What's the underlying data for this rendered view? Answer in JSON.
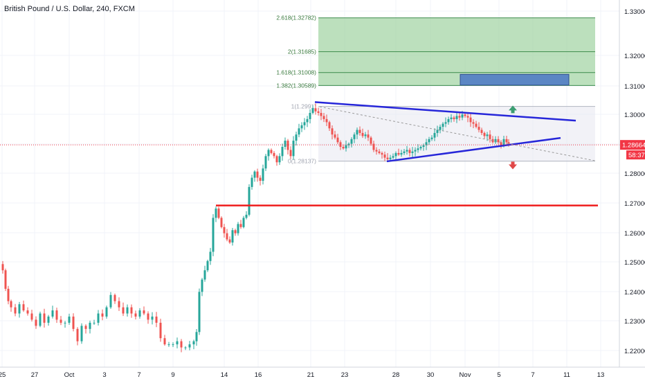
{
  "header": {
    "symbol_title": "British Pound / U.S. Dollar, 240, FXCM"
  },
  "price_scale": {
    "current_price": "1.28664",
    "countdown": "58:37",
    "current_price_color": "#f23645"
  },
  "colors": {
    "bull": "#26a69a",
    "bear": "#ef5350",
    "trendline": "#2626d9",
    "support": "#ee1c1c",
    "fib_zone": "#a5d6a7",
    "fib_box": "#5b86c4",
    "arrow_up": "#3c9e72",
    "arrow_down": "#e04848"
  },
  "chart_data": {
    "type": "candlestick",
    "title": "British Pound / U.S. Dollar, 240, FXCM",
    "x_tick_labels": [
      "25",
      "27",
      "Oct",
      "3",
      "7",
      "9",
      "14",
      "16",
      "21",
      "23",
      "28",
      "30",
      "Nov",
      "5",
      "7",
      "11",
      "13"
    ],
    "y_tick_labels": [
      "1.33000",
      "1.32000",
      "1.31000",
      "1.30000",
      "1.29000",
      "1.28000",
      "1.27000",
      "1.26000",
      "1.25000",
      "1.24000",
      "1.23000",
      "1.22000"
    ],
    "ylim": [
      1.2175,
      1.3345
    ],
    "grid": true,
    "price_path": [
      [
        0,
        1.248
      ],
      [
        4,
        1.246
      ],
      [
        8,
        1.24
      ],
      [
        12,
        1.236
      ],
      [
        16,
        1.234
      ],
      [
        22,
        1.232
      ],
      [
        28,
        1.235
      ],
      [
        34,
        1.233
      ],
      [
        40,
        1.232
      ],
      [
        46,
        1.23
      ],
      [
        52,
        1.228
      ],
      [
        58,
        1.232
      ],
      [
        64,
        1.229
      ],
      [
        70,
        1.231
      ],
      [
        76,
        1.233
      ],
      [
        82,
        1.23
      ],
      [
        88,
        1.229
      ],
      [
        94,
        1.229
      ],
      [
        100,
        1.231
      ],
      [
        106,
        1.227
      ],
      [
        112,
        1.223
      ],
      [
        118,
        1.228
      ],
      [
        124,
        1.227
      ],
      [
        130,
        1.229
      ],
      [
        136,
        1.229
      ],
      [
        142,
        1.232
      ],
      [
        148,
        1.231
      ],
      [
        154,
        1.234
      ],
      [
        160,
        1.238
      ],
      [
        166,
        1.236
      ],
      [
        172,
        1.234
      ],
      [
        178,
        1.232
      ],
      [
        184,
        1.234
      ],
      [
        190,
        1.232
      ],
      [
        196,
        1.231
      ],
      [
        202,
        1.233
      ],
      [
        208,
        1.232
      ],
      [
        214,
        1.23
      ],
      [
        220,
        1.231
      ],
      [
        226,
        1.229
      ],
      [
        232,
        1.224
      ],
      [
        238,
        1.222
      ],
      [
        244,
        1.222
      ],
      [
        250,
        1.222
      ],
      [
        256,
        1.223
      ],
      [
        262,
        1.221
      ],
      [
        268,
        1.221
      ],
      [
        274,
        1.222
      ],
      [
        280,
        1.223
      ],
      [
        284,
        1.226
      ],
      [
        288,
        1.239
      ],
      [
        292,
        1.243
      ],
      [
        296,
        1.246
      ],
      [
        300,
        1.249
      ],
      [
        304,
        1.252
      ],
      [
        308,
        1.263
      ],
      [
        312,
        1.266
      ],
      [
        316,
        1.263
      ],
      [
        320,
        1.26
      ],
      [
        324,
        1.258
      ],
      [
        328,
        1.256
      ],
      [
        332,
        1.255
      ],
      [
        336,
        1.259
      ],
      [
        340,
        1.258
      ],
      [
        344,
        1.261
      ],
      [
        348,
        1.26
      ],
      [
        352,
        1.263
      ],
      [
        356,
        1.264
      ],
      [
        360,
        1.273
      ],
      [
        364,
        1.276
      ],
      [
        368,
        1.278
      ],
      [
        372,
        1.276
      ],
      [
        376,
        1.275
      ],
      [
        380,
        1.279
      ],
      [
        384,
        1.283
      ],
      [
        388,
        1.285
      ],
      [
        392,
        1.284
      ],
      [
        396,
        1.283
      ],
      [
        400,
        1.281
      ],
      [
        404,
        1.283
      ],
      [
        408,
        1.286
      ],
      [
        412,
        1.288
      ],
      [
        416,
        1.285
      ],
      [
        420,
        1.283
      ],
      [
        424,
        1.288
      ],
      [
        428,
        1.29
      ],
      [
        432,
        1.292
      ],
      [
        436,
        1.293
      ],
      [
        440,
        1.294
      ],
      [
        444,
        1.295
      ],
      [
        448,
        1.297
      ],
      [
        452,
        1.2985
      ],
      [
        456,
        1.2975
      ],
      [
        460,
        1.297
      ],
      [
        464,
        1.296
      ],
      [
        468,
        1.295
      ],
      [
        472,
        1.294
      ],
      [
        476,
        1.292
      ],
      [
        480,
        1.29
      ],
      [
        484,
        1.289
      ],
      [
        488,
        1.2875
      ],
      [
        492,
        1.286
      ],
      [
        496,
        1.2855
      ],
      [
        500,
        1.2865
      ],
      [
        504,
        1.287
      ],
      [
        508,
        1.2885
      ],
      [
        512,
        1.29
      ],
      [
        516,
        1.2915
      ],
      [
        520,
        1.2905
      ],
      [
        524,
        1.2895
      ],
      [
        528,
        1.29
      ],
      [
        532,
        1.289
      ],
      [
        536,
        1.287
      ],
      [
        540,
        1.285
      ],
      [
        544,
        1.2845
      ],
      [
        548,
        1.284
      ],
      [
        552,
        1.2835
      ],
      [
        556,
        1.2825
      ],
      [
        560,
        1.282
      ],
      [
        564,
        1.2825
      ],
      [
        568,
        1.283
      ],
      [
        572,
        1.284
      ],
      [
        576,
        1.2835
      ],
      [
        580,
        1.284
      ],
      [
        584,
        1.2845
      ],
      [
        588,
        1.285
      ],
      [
        592,
        1.284
      ],
      [
        596,
        1.2845
      ],
      [
        600,
        1.285
      ],
      [
        604,
        1.2855
      ],
      [
        608,
        1.286
      ],
      [
        612,
        1.2865
      ],
      [
        616,
        1.2875
      ],
      [
        620,
        1.2885
      ],
      [
        624,
        1.289
      ],
      [
        628,
        1.2905
      ],
      [
        632,
        1.2915
      ],
      [
        636,
        1.2925
      ],
      [
        640,
        1.2935
      ],
      [
        644,
        1.294
      ],
      [
        648,
        1.295
      ],
      [
        652,
        1.2955
      ],
      [
        656,
        1.295
      ],
      [
        660,
        1.296
      ],
      [
        664,
        1.2955
      ],
      [
        668,
        1.2965
      ],
      [
        672,
        1.296
      ],
      [
        676,
        1.2955
      ],
      [
        680,
        1.294
      ],
      [
        684,
        1.2935
      ],
      [
        688,
        1.2925
      ],
      [
        692,
        1.2915
      ],
      [
        696,
        1.2905
      ],
      [
        700,
        1.2895
      ],
      [
        704,
        1.29
      ],
      [
        708,
        1.2885
      ],
      [
        712,
        1.2875
      ],
      [
        716,
        1.2885
      ],
      [
        720,
        1.2875
      ],
      [
        724,
        1.2865
      ],
      [
        728,
        1.2885
      ],
      [
        732,
        1.2875
      ],
      [
        735,
        1.2866
      ]
    ],
    "fibonacci": {
      "levels": [
        {
          "label": "2.618(1.32782)",
          "value": 1.32782
        },
        {
          "label": "2(1.31685)",
          "value": 1.31685
        },
        {
          "label": "1.618(1.31008)",
          "value": 1.31008
        },
        {
          "label": "1.382(1.30589)",
          "value": 1.30589
        },
        {
          "label": "1(1.2991)",
          "value": 1.2991
        },
        {
          "label": "0(1.28137)",
          "value": 1.28137
        }
      ]
    },
    "target_box": {
      "y_low": 1.306,
      "y_high": 1.3095,
      "label": ""
    },
    "triangle": {
      "upper_line": {
        "y_start": 1.3005,
        "y_end": 1.2945
      },
      "lower_line": {
        "y_start": 1.2813,
        "y_end": 1.2889
      }
    },
    "projection_line": {
      "y_start": 1.299,
      "y_end": 1.2815
    },
    "support_line": {
      "value": 1.267
    },
    "arrows": [
      {
        "direction": "up",
        "value": 1.2978
      },
      {
        "direction": "down",
        "value": 1.2803
      }
    ]
  }
}
